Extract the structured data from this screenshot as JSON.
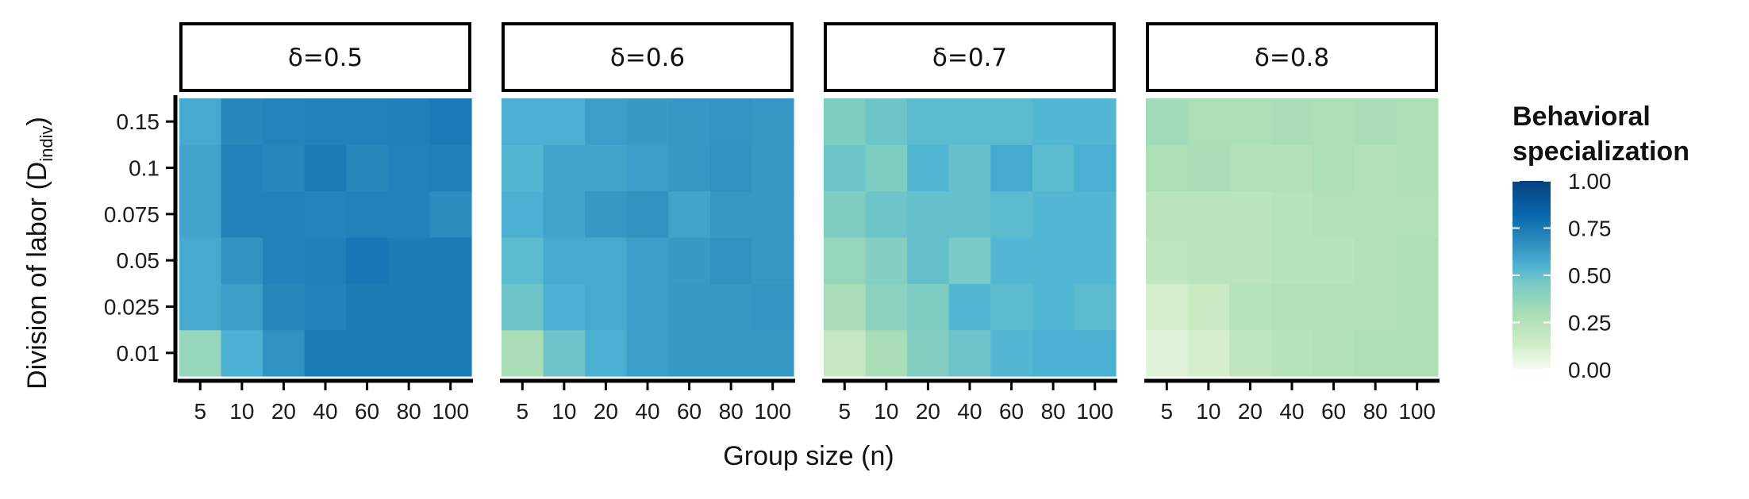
{
  "chart_data": {
    "type": "heatmap",
    "xlabel": "Group size (n)",
    "ylabel": "Division of labor (D",
    "ylabel_subscript": "indiv",
    "ylabel_suffix": ")",
    "x_categories": [
      "5",
      "10",
      "20",
      "40",
      "60",
      "80",
      "100"
    ],
    "y_categories": [
      "0.01",
      "0.025",
      "0.05",
      "0.075",
      "0.1",
      "0.15"
    ],
    "legend": {
      "title_lines": [
        "Behavioral",
        "specialization"
      ],
      "ticks": [
        "0.00",
        "0.25",
        "0.50",
        "0.75",
        "1.00"
      ],
      "tick_values": [
        0,
        0.25,
        0.5,
        0.75,
        1.0
      ],
      "range": [
        0,
        1
      ],
      "placement": "right"
    },
    "color_scale": [
      {
        "v": 0.0,
        "c": "#f7fcf0"
      },
      {
        "v": 0.15,
        "c": "#ccebc5"
      },
      {
        "v": 0.3,
        "c": "#a8ddb5"
      },
      {
        "v": 0.45,
        "c": "#7bccc4"
      },
      {
        "v": 0.55,
        "c": "#4eb3d3"
      },
      {
        "v": 0.68,
        "c": "#2b8cbe"
      },
      {
        "v": 0.82,
        "c": "#0868ac"
      },
      {
        "v": 1.0,
        "c": "#084081"
      }
    ],
    "panels": [
      {
        "label": "δ=0.5",
        "values_by_row_from_0.01": [
          [
            0.36,
            0.56,
            0.66,
            0.74,
            0.74,
            0.74,
            0.74
          ],
          [
            0.58,
            0.62,
            0.7,
            0.72,
            0.74,
            0.74,
            0.74
          ],
          [
            0.58,
            0.66,
            0.72,
            0.73,
            0.76,
            0.74,
            0.74
          ],
          [
            0.6,
            0.72,
            0.72,
            0.71,
            0.72,
            0.72,
            0.68
          ],
          [
            0.6,
            0.72,
            0.7,
            0.74,
            0.7,
            0.72,
            0.73
          ],
          [
            0.58,
            0.7,
            0.71,
            0.72,
            0.72,
            0.73,
            0.75
          ]
        ]
      },
      {
        "label": "δ=0.6",
        "values_by_row_from_0.01": [
          [
            0.3,
            0.48,
            0.56,
            0.62,
            0.64,
            0.64,
            0.64
          ],
          [
            0.48,
            0.56,
            0.58,
            0.62,
            0.64,
            0.64,
            0.65
          ],
          [
            0.52,
            0.58,
            0.58,
            0.62,
            0.63,
            0.66,
            0.64
          ],
          [
            0.56,
            0.6,
            0.64,
            0.66,
            0.6,
            0.64,
            0.64
          ],
          [
            0.54,
            0.6,
            0.6,
            0.62,
            0.64,
            0.66,
            0.64
          ],
          [
            0.56,
            0.56,
            0.62,
            0.63,
            0.64,
            0.65,
            0.64
          ]
        ]
      },
      {
        "label": "δ=0.7",
        "values_by_row_from_0.01": [
          [
            0.18,
            0.3,
            0.42,
            0.48,
            0.54,
            0.56,
            0.56
          ],
          [
            0.3,
            0.4,
            0.44,
            0.54,
            0.52,
            0.54,
            0.52
          ],
          [
            0.36,
            0.42,
            0.5,
            0.46,
            0.54,
            0.54,
            0.54
          ],
          [
            0.44,
            0.48,
            0.5,
            0.5,
            0.52,
            0.54,
            0.54
          ],
          [
            0.48,
            0.44,
            0.54,
            0.5,
            0.58,
            0.52,
            0.56
          ],
          [
            0.44,
            0.48,
            0.52,
            0.52,
            0.52,
            0.54,
            0.54
          ]
        ]
      },
      {
        "label": "δ=0.8",
        "values_by_row_from_0.01": [
          [
            0.08,
            0.12,
            0.2,
            0.24,
            0.26,
            0.28,
            0.28
          ],
          [
            0.12,
            0.16,
            0.24,
            0.26,
            0.26,
            0.26,
            0.28
          ],
          [
            0.2,
            0.22,
            0.22,
            0.24,
            0.24,
            0.26,
            0.28
          ],
          [
            0.22,
            0.22,
            0.22,
            0.24,
            0.26,
            0.26,
            0.26
          ],
          [
            0.28,
            0.3,
            0.26,
            0.26,
            0.28,
            0.26,
            0.28
          ],
          [
            0.32,
            0.28,
            0.28,
            0.3,
            0.28,
            0.3,
            0.28
          ]
        ]
      }
    ]
  }
}
